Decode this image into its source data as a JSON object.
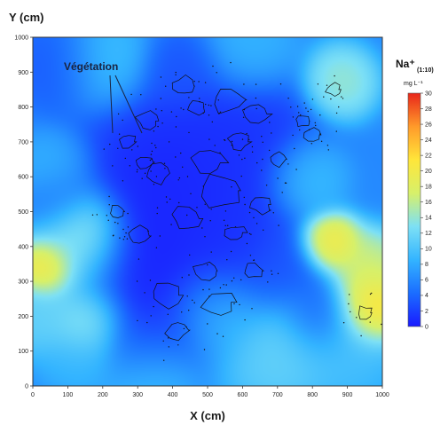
{
  "chart_data": {
    "type": "heatmap",
    "title": "",
    "xlabel": "X (cm)",
    "ylabel": "Y (cm)",
    "xlim": [
      0,
      1000
    ],
    "ylim": [
      0,
      1000
    ],
    "x_ticks": [
      "0",
      "100",
      "200",
      "300",
      "400",
      "500",
      "600",
      "700",
      "800",
      "900",
      "1000"
    ],
    "y_ticks": [
      "0",
      "100",
      "200",
      "300",
      "400",
      "500",
      "600",
      "700",
      "800",
      "900",
      "1000"
    ],
    "colorbar": {
      "title": "Na⁺",
      "subscript": "(1:10)",
      "unit": "mg L⁻¹",
      "range": [
        0,
        30
      ],
      "ticks": [
        "0",
        "2",
        "4",
        "6",
        "8",
        "10",
        "12",
        "14",
        "16",
        "18",
        "20",
        "22",
        "24",
        "26",
        "28",
        "30"
      ],
      "colors": [
        "#1a1aff",
        "#1b6dff",
        "#33b4ff",
        "#7de0f5",
        "#d7f06a",
        "#ffe63a",
        "#ff9a2a",
        "#e8261a"
      ]
    },
    "annotation": {
      "label": "Végétation"
    },
    "field": {
      "background": 6,
      "sources": [
        {
          "x": 120,
          "y": 380,
          "value": 15,
          "sigma": 80
        },
        {
          "x": 150,
          "y": 450,
          "value": 18,
          "sigma": 60
        },
        {
          "x": 40,
          "y": 340,
          "value": 25,
          "sigma": 45
        },
        {
          "x": 160,
          "y": 180,
          "value": 16,
          "sigma": 60
        },
        {
          "x": 20,
          "y": 200,
          "value": 12,
          "sigma": 60
        },
        {
          "x": 850,
          "y": 410,
          "value": 22,
          "sigma": 45
        },
        {
          "x": 965,
          "y": 220,
          "value": 25,
          "sigma": 55
        },
        {
          "x": 960,
          "y": 330,
          "value": 18,
          "sigma": 60
        },
        {
          "x": 880,
          "y": 870,
          "value": 15,
          "sigma": 55
        },
        {
          "x": 700,
          "y": 100,
          "value": 12,
          "sigma": 90
        },
        {
          "x": 520,
          "y": 220,
          "value": 14,
          "sigma": 70
        },
        {
          "x": 900,
          "y": 100,
          "value": 10,
          "sigma": 80
        },
        {
          "x": 330,
          "y": 40,
          "value": 10,
          "sigma": 70
        },
        {
          "x": 130,
          "y": 80,
          "value": 9,
          "sigma": 60
        },
        {
          "x": 200,
          "y": 930,
          "value": 10,
          "sigma": 70
        },
        {
          "x": 60,
          "y": 620,
          "value": 9,
          "sigma": 60
        },
        {
          "x": 780,
          "y": 600,
          "value": 10,
          "sigma": 60
        },
        {
          "x": 620,
          "y": 960,
          "value": 9,
          "sigma": 70
        },
        {
          "x": 400,
          "y": 580,
          "value": 0,
          "sigma": 150
        },
        {
          "x": 300,
          "y": 350,
          "value": 0,
          "sigma": 120
        },
        {
          "x": 480,
          "y": 250,
          "value": 0,
          "sigma": 90
        },
        {
          "x": 600,
          "y": 700,
          "value": 1,
          "sigma": 110
        },
        {
          "x": 550,
          "y": 400,
          "value": 1,
          "sigma": 90
        },
        {
          "x": 700,
          "y": 330,
          "value": 3,
          "sigma": 70
        },
        {
          "x": 320,
          "y": 130,
          "value": 2,
          "sigma": 70
        },
        {
          "x": 80,
          "y": 920,
          "value": 3,
          "sigma": 70
        },
        {
          "x": 430,
          "y": 900,
          "value": 3,
          "sigma": 60
        },
        {
          "x": 820,
          "y": 200,
          "value": 3,
          "sigma": 60
        },
        {
          "x": 80,
          "y": 520,
          "value": 4,
          "sigma": 60
        }
      ]
    },
    "vegetation_patches": [
      {
        "x": 430,
        "y": 860,
        "r": 15
      },
      {
        "x": 560,
        "y": 820,
        "r": 20
      },
      {
        "x": 640,
        "y": 780,
        "r": 16
      },
      {
        "x": 330,
        "y": 760,
        "r": 14
      },
      {
        "x": 270,
        "y": 700,
        "r": 12
      },
      {
        "x": 500,
        "y": 640,
        "r": 22
      },
      {
        "x": 360,
        "y": 610,
        "r": 15
      },
      {
        "x": 540,
        "y": 560,
        "r": 26
      },
      {
        "x": 650,
        "y": 520,
        "r": 14
      },
      {
        "x": 440,
        "y": 480,
        "r": 18
      },
      {
        "x": 300,
        "y": 430,
        "r": 14
      },
      {
        "x": 580,
        "y": 440,
        "r": 12
      },
      {
        "x": 500,
        "y": 330,
        "r": 16
      },
      {
        "x": 630,
        "y": 330,
        "r": 12
      },
      {
        "x": 380,
        "y": 260,
        "r": 18
      },
      {
        "x": 530,
        "y": 240,
        "r": 20
      },
      {
        "x": 410,
        "y": 160,
        "r": 14
      },
      {
        "x": 320,
        "y": 640,
        "r": 10
      },
      {
        "x": 700,
        "y": 650,
        "r": 12
      },
      {
        "x": 800,
        "y": 720,
        "r": 10
      },
      {
        "x": 860,
        "y": 850,
        "r": 10
      },
      {
        "x": 950,
        "y": 210,
        "r": 10
      },
      {
        "x": 770,
        "y": 760,
        "r": 9
      },
      {
        "x": 470,
        "y": 800,
        "r": 11
      },
      {
        "x": 240,
        "y": 500,
        "r": 10
      },
      {
        "x": 590,
        "y": 700,
        "r": 13
      }
    ]
  }
}
